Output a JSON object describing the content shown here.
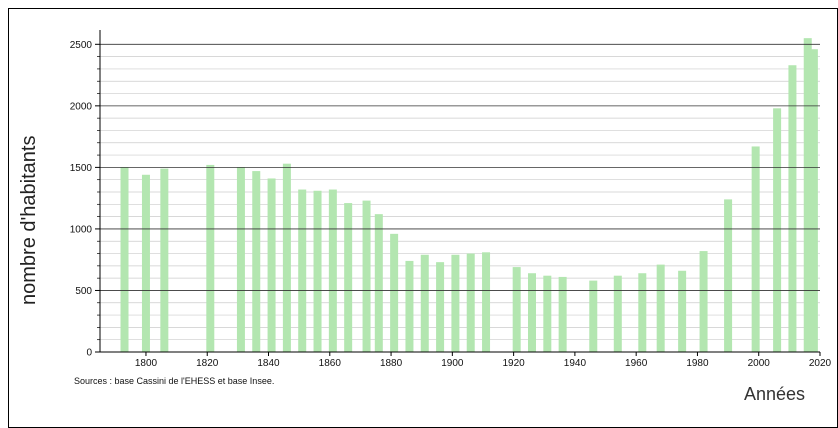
{
  "chart_data": {
    "type": "bar",
    "title": "",
    "xlabel": "Années",
    "ylabel": "nombre d'habitants",
    "source": "Sources : base Cassini de l'EHESS et base Insee.",
    "xlim": [
      1785,
      2020
    ],
    "ylim": [
      0,
      2600
    ],
    "x_ticks": [
      1800,
      1820,
      1840,
      1860,
      1880,
      1900,
      1920,
      1940,
      1960,
      1980,
      2000,
      2020
    ],
    "y_ticks": [
      0,
      500,
      1000,
      1500,
      2000,
      2500
    ],
    "grid": true,
    "bar_color": "#b3e6b0",
    "x": [
      1793,
      1800,
      1806,
      1821,
      1831,
      1836,
      1841,
      1846,
      1851,
      1856,
      1861,
      1866,
      1872,
      1876,
      1881,
      1886,
      1891,
      1896,
      1901,
      1906,
      1911,
      1921,
      1926,
      1931,
      1936,
      1946,
      1954,
      1962,
      1968,
      1975,
      1982,
      1990,
      1999,
      2006,
      2011,
      2016,
      2018
    ],
    "values": [
      1500,
      1440,
      1490,
      1520,
      1500,
      1470,
      1410,
      1530,
      1320,
      1310,
      1320,
      1210,
      1230,
      1120,
      960,
      740,
      790,
      730,
      790,
      800,
      810,
      690,
      640,
      620,
      610,
      580,
      620,
      640,
      710,
      660,
      820,
      1240,
      1670,
      1980,
      2330,
      2550,
      2460
    ]
  }
}
